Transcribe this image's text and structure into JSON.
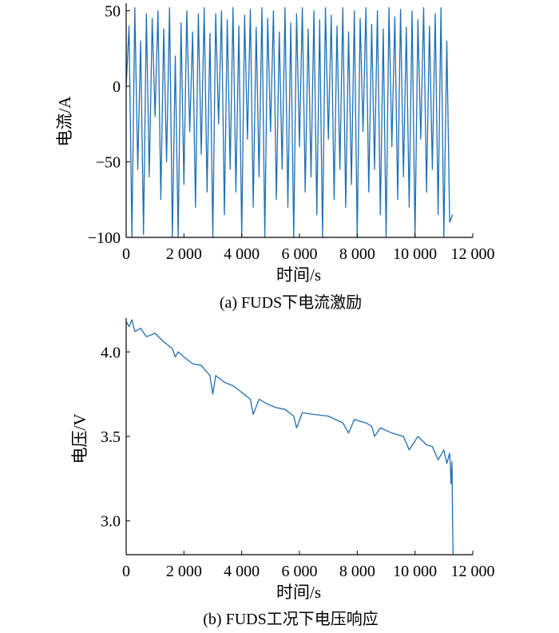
{
  "chart_data": [
    {
      "id": "current",
      "type": "line",
      "caption": "(a)  FUDS下电流激励",
      "xlabel": "时间/s",
      "ylabel": "电流/A",
      "xlim": [
        0,
        12000
      ],
      "ylim": [
        -100,
        55
      ],
      "x_ticks": [
        0,
        2000,
        4000,
        6000,
        8000,
        10000,
        12000
      ],
      "x_tick_labels": [
        "0",
        "2 000",
        "4 000",
        "6 000",
        "8 000",
        "10 000",
        "12 000"
      ],
      "y_ticks": [
        -100,
        -50,
        0,
        50
      ],
      "y_tick_labels": [
        "−100",
        "−50",
        "0",
        "50"
      ],
      "grid": false,
      "series": [
        {
          "color": "#1f6fb4",
          "x": [
            0,
            100,
            200,
            300,
            400,
            500,
            600,
            700,
            800,
            900,
            1000,
            1100,
            1200,
            1300,
            1400,
            1500,
            1600,
            1700,
            1800,
            1900,
            2000,
            2100,
            2200,
            2300,
            2400,
            2500,
            2600,
            2700,
            2800,
            2900,
            3000,
            3100,
            3200,
            3300,
            3400,
            3500,
            3600,
            3700,
            3800,
            3900,
            4000,
            4100,
            4200,
            4300,
            4400,
            4500,
            4600,
            4700,
            4800,
            4900,
            5000,
            5100,
            5200,
            5300,
            5400,
            5500,
            5600,
            5700,
            5800,
            5900,
            6000,
            6100,
            6200,
            6300,
            6400,
            6500,
            6600,
            6700,
            6800,
            6900,
            7000,
            7100,
            7200,
            7300,
            7400,
            7500,
            7600,
            7700,
            7800,
            7900,
            8000,
            8100,
            8200,
            8300,
            8400,
            8500,
            8600,
            8700,
            8800,
            8900,
            9000,
            9100,
            9200,
            9300,
            9400,
            9500,
            9600,
            9700,
            9800,
            9900,
            10000,
            10100,
            10200,
            10300,
            10400,
            10500,
            10600,
            10700,
            10800,
            10900,
            11000,
            11100,
            11200,
            11300
          ],
          "y": [
            0,
            40,
            -100,
            52,
            -55,
            30,
            -98,
            48,
            -60,
            45,
            -20,
            50,
            -75,
            38,
            -50,
            52,
            -100,
            20,
            -100,
            42,
            -65,
            50,
            -30,
            36,
            -80,
            48,
            -45,
            52,
            -70,
            35,
            -100,
            48,
            -25,
            50,
            -85,
            44,
            -55,
            52,
            -70,
            40,
            -100,
            47,
            -35,
            51,
            -80,
            39,
            -60,
            52,
            -100,
            45,
            -30,
            50,
            -75,
            36,
            -55,
            52,
            -80,
            42,
            -100,
            48,
            -40,
            52,
            -70,
            38,
            -60,
            50,
            -85,
            44,
            -100,
            52,
            -35,
            47,
            -75,
            40,
            -55,
            52,
            -80,
            36,
            -65,
            50,
            -100,
            45,
            -30,
            52,
            -70,
            41,
            -55,
            50,
            -85,
            38,
            -100,
            52,
            -40,
            46,
            -75,
            51,
            -60,
            39,
            -80,
            50,
            -100,
            44,
            -35,
            52,
            -70,
            40,
            -55,
            48,
            -85,
            52,
            -100,
            30,
            -90,
            -85
          ]
        }
      ]
    },
    {
      "id": "voltage",
      "type": "line",
      "caption": "(b)  FUDS工况下电压响应",
      "xlabel": "时间/s",
      "ylabel": "电压/V",
      "xlim": [
        0,
        12000
      ],
      "ylim": [
        2.8,
        4.2
      ],
      "x_ticks": [
        0,
        2000,
        4000,
        6000,
        8000,
        10000,
        12000
      ],
      "x_tick_labels": [
        "0",
        "2 000",
        "4 000",
        "6 000",
        "8 000",
        "10 000",
        "12 000"
      ],
      "y_ticks": [
        3.0,
        3.5,
        4.0
      ],
      "y_tick_labels": [
        "3.0",
        "3.5",
        "4.0"
      ],
      "grid": false,
      "series": [
        {
          "color": "#1f6fb4",
          "x": [
            0,
            100,
            200,
            300,
            500,
            700,
            1000,
            1300,
            1600,
            1700,
            1800,
            2000,
            2300,
            2600,
            2900,
            3000,
            3100,
            3400,
            3700,
            4000,
            4300,
            4400,
            4600,
            4900,
            5200,
            5500,
            5800,
            5900,
            6100,
            6500,
            7000,
            7500,
            7700,
            7900,
            8300,
            8500,
            8600,
            8800,
            9200,
            9600,
            9800,
            10100,
            10400,
            10600,
            10800,
            11000,
            11100,
            11200,
            11250,
            11280,
            11300,
            11320
          ],
          "y": [
            4.18,
            4.15,
            4.19,
            4.12,
            4.14,
            4.09,
            4.11,
            4.06,
            4.02,
            3.97,
            4.0,
            3.97,
            3.93,
            3.92,
            3.86,
            3.75,
            3.86,
            3.82,
            3.8,
            3.76,
            3.72,
            3.63,
            3.72,
            3.69,
            3.67,
            3.66,
            3.62,
            3.55,
            3.64,
            3.63,
            3.62,
            3.58,
            3.52,
            3.6,
            3.58,
            3.56,
            3.5,
            3.55,
            3.52,
            3.5,
            3.42,
            3.5,
            3.45,
            3.44,
            3.36,
            3.42,
            3.34,
            3.4,
            3.22,
            3.35,
            3.0,
            2.8
          ]
        }
      ]
    }
  ]
}
